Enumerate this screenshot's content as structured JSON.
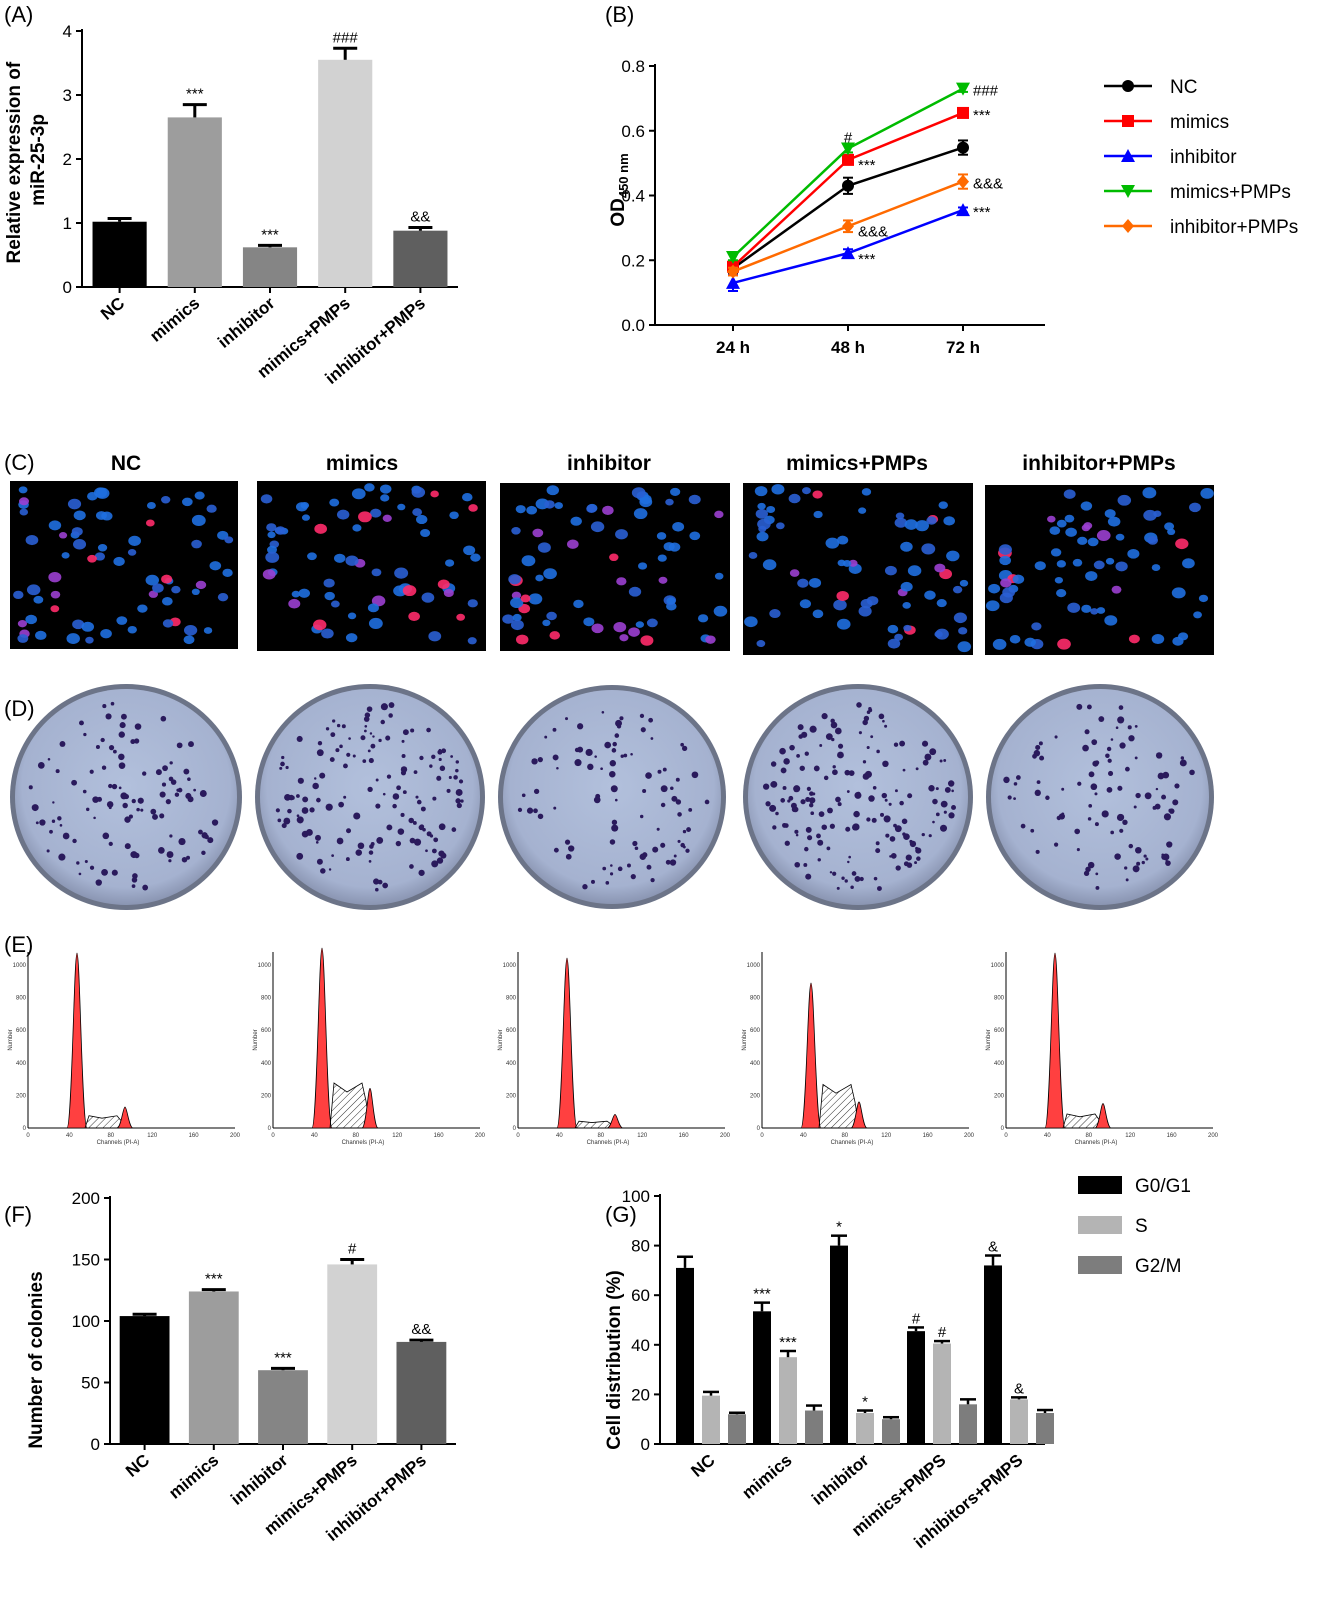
{
  "panels": {
    "A": "(A)",
    "B": "(B)",
    "C": "(C)",
    "D": "(D)",
    "E": "(E)",
    "F": "(F)",
    "G": "(G)"
  },
  "colors": {
    "NC": "#000000",
    "mimics": "#ff0000",
    "inhibitor": "#0000ff",
    "mimics+PMPs": "#00bb00",
    "inhibitor+PMPs": "#ff6a00",
    "barA": [
      "#000000",
      "#9d9d9d",
      "#858585",
      "#d2d2d2",
      "#5f5f5f"
    ],
    "barG": [
      "#000000",
      "#b4b4b4",
      "#7d7d7d"
    ]
  },
  "icons": {
    "fluorescence": "fluorescence-micrograph",
    "colony": "colony-plate",
    "flow": "flow-histogram"
  },
  "chart_data": [
    {
      "id": "A",
      "type": "bar",
      "categories": [
        "NC",
        "mimics",
        "inhibitor",
        "mimics+PMPs",
        "inhibitor+PMPs"
      ],
      "values": [
        1.02,
        2.65,
        0.62,
        3.55,
        0.88
      ],
      "errors": [
        0.05,
        0.2,
        0.03,
        0.18,
        0.05
      ],
      "sig": [
        "",
        "***",
        "***",
        "###",
        "&&"
      ],
      "ylabel": "Relative expression of miR-25-3p",
      "ylim": [
        0,
        4
      ],
      "yticks": [
        "0",
        "1",
        "2",
        "3",
        "4"
      ]
    },
    {
      "id": "B",
      "type": "line",
      "x": [
        "24 h",
        "48 h",
        "72 h"
      ],
      "ylabel": "OD450 nm",
      "ylim": [
        0,
        0.8
      ],
      "yticks": [
        "0.0",
        "0.2",
        "0.4",
        "0.6",
        "0.8"
      ],
      "series": [
        {
          "name": "NC",
          "values": [
            0.175,
            0.43,
            0.548
          ],
          "errors": [
            0.015,
            0.025,
            0.022
          ]
        },
        {
          "name": "mimics",
          "values": [
            0.18,
            0.51,
            0.655
          ],
          "errors": [
            0.01,
            0.01,
            0.008
          ]
        },
        {
          "name": "inhibitor",
          "values": [
            0.13,
            0.222,
            0.355
          ],
          "errors": [
            0.025,
            0.012,
            0.008
          ]
        },
        {
          "name": "mimics+PMPs",
          "values": [
            0.21,
            0.545,
            0.73
          ],
          "errors": [
            0.01,
            0.012,
            0.01
          ]
        },
        {
          "name": "inhibitor+PMPs",
          "values": [
            0.165,
            0.305,
            0.443
          ],
          "errors": [
            0.012,
            0.018,
            0.022
          ]
        }
      ],
      "annotations": [
        {
          "text": "#",
          "x": "48 h",
          "y": 0.585
        },
        {
          "text": "***",
          "x": "48 h",
          "y": 0.5
        },
        {
          "text": "&&&",
          "x": "48 h",
          "y": 0.295
        },
        {
          "text": "***",
          "x": "48 h",
          "y": 0.21
        },
        {
          "text": "###",
          "x": "72 h",
          "y": 0.73
        },
        {
          "text": "***",
          "x": "72 h",
          "y": 0.655
        },
        {
          "text": "&&&",
          "x": "72 h",
          "y": 0.443
        },
        {
          "text": "***",
          "x": "72 h",
          "y": 0.355
        }
      ]
    },
    {
      "id": "F",
      "type": "bar",
      "categories": [
        "NC",
        "mimics",
        "inhibitor",
        "mimics+PMPs",
        "inhibitor+PMPs"
      ],
      "values": [
        104,
        124,
        60,
        146,
        83
      ],
      "errors": [
        1.5,
        1.5,
        1.5,
        4,
        1.5
      ],
      "sig": [
        "",
        "***",
        "***",
        "#",
        "&&"
      ],
      "ylabel": "Number of colonies",
      "ylim": [
        0,
        200
      ],
      "yticks": [
        "0",
        "50",
        "100",
        "150",
        "200"
      ]
    },
    {
      "id": "G",
      "type": "bar",
      "categories": [
        "NC",
        "mimics",
        "inhibitor",
        "mimics+PMPS",
        "inhibitors+PMPS"
      ],
      "ylabel": "Cell distribution (%)",
      "ylim": [
        0,
        100
      ],
      "yticks": [
        "0",
        "20",
        "40",
        "60",
        "80",
        "100"
      ],
      "series": [
        {
          "name": "G0/G1",
          "values": [
            71,
            53.5,
            80,
            45.5,
            72
          ],
          "errors": [
            4.5,
            3.5,
            4,
            1.5,
            4
          ],
          "sig": [
            "",
            "***",
            "*",
            "#",
            "&"
          ]
        },
        {
          "name": "S",
          "values": [
            19.5,
            35,
            12.5,
            40.5,
            18
          ],
          "errors": [
            1.5,
            2.5,
            1,
            1,
            0.8
          ],
          "sig": [
            "",
            "***",
            "*",
            "#",
            "&"
          ]
        },
        {
          "name": "G2/M",
          "values": [
            12,
            13.5,
            10,
            16,
            12.5
          ],
          "errors": [
            0.6,
            2,
            0.8,
            2,
            1.2
          ],
          "sig": [
            "",
            "",
            "",
            "",
            ""
          ]
        }
      ]
    }
  ],
  "image_panels": {
    "C": {
      "titles": [
        "NC",
        "mimics",
        "inhibitor",
        "mimics+PMPs",
        "inhibitor+PMPs"
      ]
    },
    "D": {
      "count": 5
    },
    "E": {
      "yaxis": "Number",
      "xaxis": "Channels (PI-A)",
      "ticks_x": [
        "0",
        "40",
        "80",
        "120",
        "160",
        "200"
      ],
      "ticks_y": [
        "0",
        "200",
        "400",
        "600",
        "800",
        "1000"
      ]
    }
  }
}
